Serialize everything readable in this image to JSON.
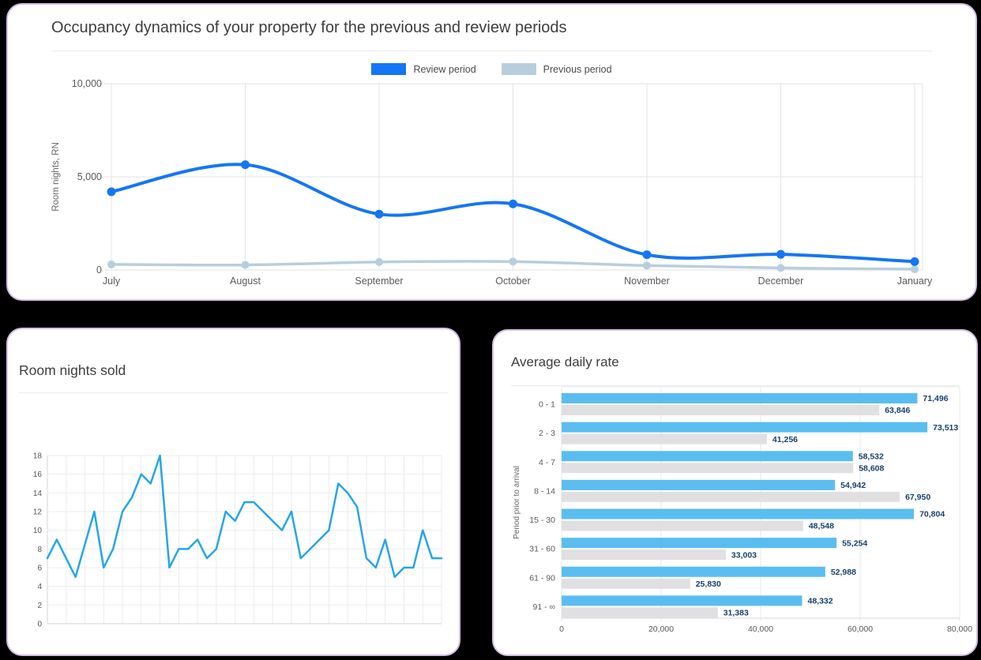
{
  "page": {
    "background": "#000000",
    "card_border": "#d3bfe8",
    "card_background": "#ffffff"
  },
  "chart_data": [
    {
      "type": "line",
      "title": "Occupancy dynamics of your property for the previous and review periods",
      "ylabel": "Room nights, RN",
      "categories": [
        "July",
        "August",
        "September",
        "October",
        "November",
        "December",
        "January"
      ],
      "series": [
        {
          "name": "Review period",
          "color": "#1476f5",
          "values": [
            4200,
            5650,
            3000,
            3550,
            820,
            840,
            450
          ]
        },
        {
          "name": "Previous period",
          "color": "#b8cedd",
          "values": [
            300,
            270,
            430,
            450,
            240,
            110,
            40
          ]
        }
      ],
      "ylim": [
        0,
        10000
      ],
      "yticks": [
        0,
        5000,
        10000
      ],
      "legend_position": "top",
      "grid": true,
      "smooth": true,
      "markers": true
    },
    {
      "type": "line",
      "title": "Room nights sold",
      "values": [
        7,
        9,
        7,
        5,
        8.5,
        12,
        6,
        8,
        12,
        13.5,
        16,
        15,
        18,
        6,
        8,
        8,
        9,
        7,
        8,
        12,
        11,
        13,
        13,
        12,
        11,
        10,
        12,
        7,
        8,
        9,
        10,
        15,
        14,
        12.5,
        7,
        6,
        9,
        5,
        6,
        6,
        10,
        7,
        7
      ],
      "ylim": [
        0,
        18
      ],
      "yticks": [
        0,
        2,
        4,
        6,
        8,
        10,
        12,
        14,
        16,
        18
      ],
      "color": "#25a5ea",
      "grid": true,
      "smooth": false,
      "markers": false
    },
    {
      "type": "bar",
      "orientation": "horizontal",
      "title": "Average daily rate",
      "ylabel": "Period prior to arrival",
      "categories": [
        "0 - 1",
        "2 - 3",
        "4 - 7",
        "8 - 14",
        "15 - 30",
        "31 - 60",
        "61 - 90",
        "91 - ∞"
      ],
      "series": [
        {
          "name": "Review period",
          "color": "#5abdf0",
          "values": [
            71496,
            73513,
            58532,
            54942,
            70804,
            55254,
            52988,
            48332
          ]
        },
        {
          "name": "Previous period",
          "color": "#e0e0e2",
          "values": [
            63846,
            41256,
            58608,
            67950,
            48548,
            33003,
            25830,
            31383
          ]
        }
      ],
      "xlim": [
        0,
        80000
      ],
      "xticks": [
        0,
        20000,
        40000,
        60000,
        80000
      ],
      "value_labels": true,
      "value_label_color": "#17406e",
      "axis_text_color": "#595959",
      "grid": true
    }
  ]
}
